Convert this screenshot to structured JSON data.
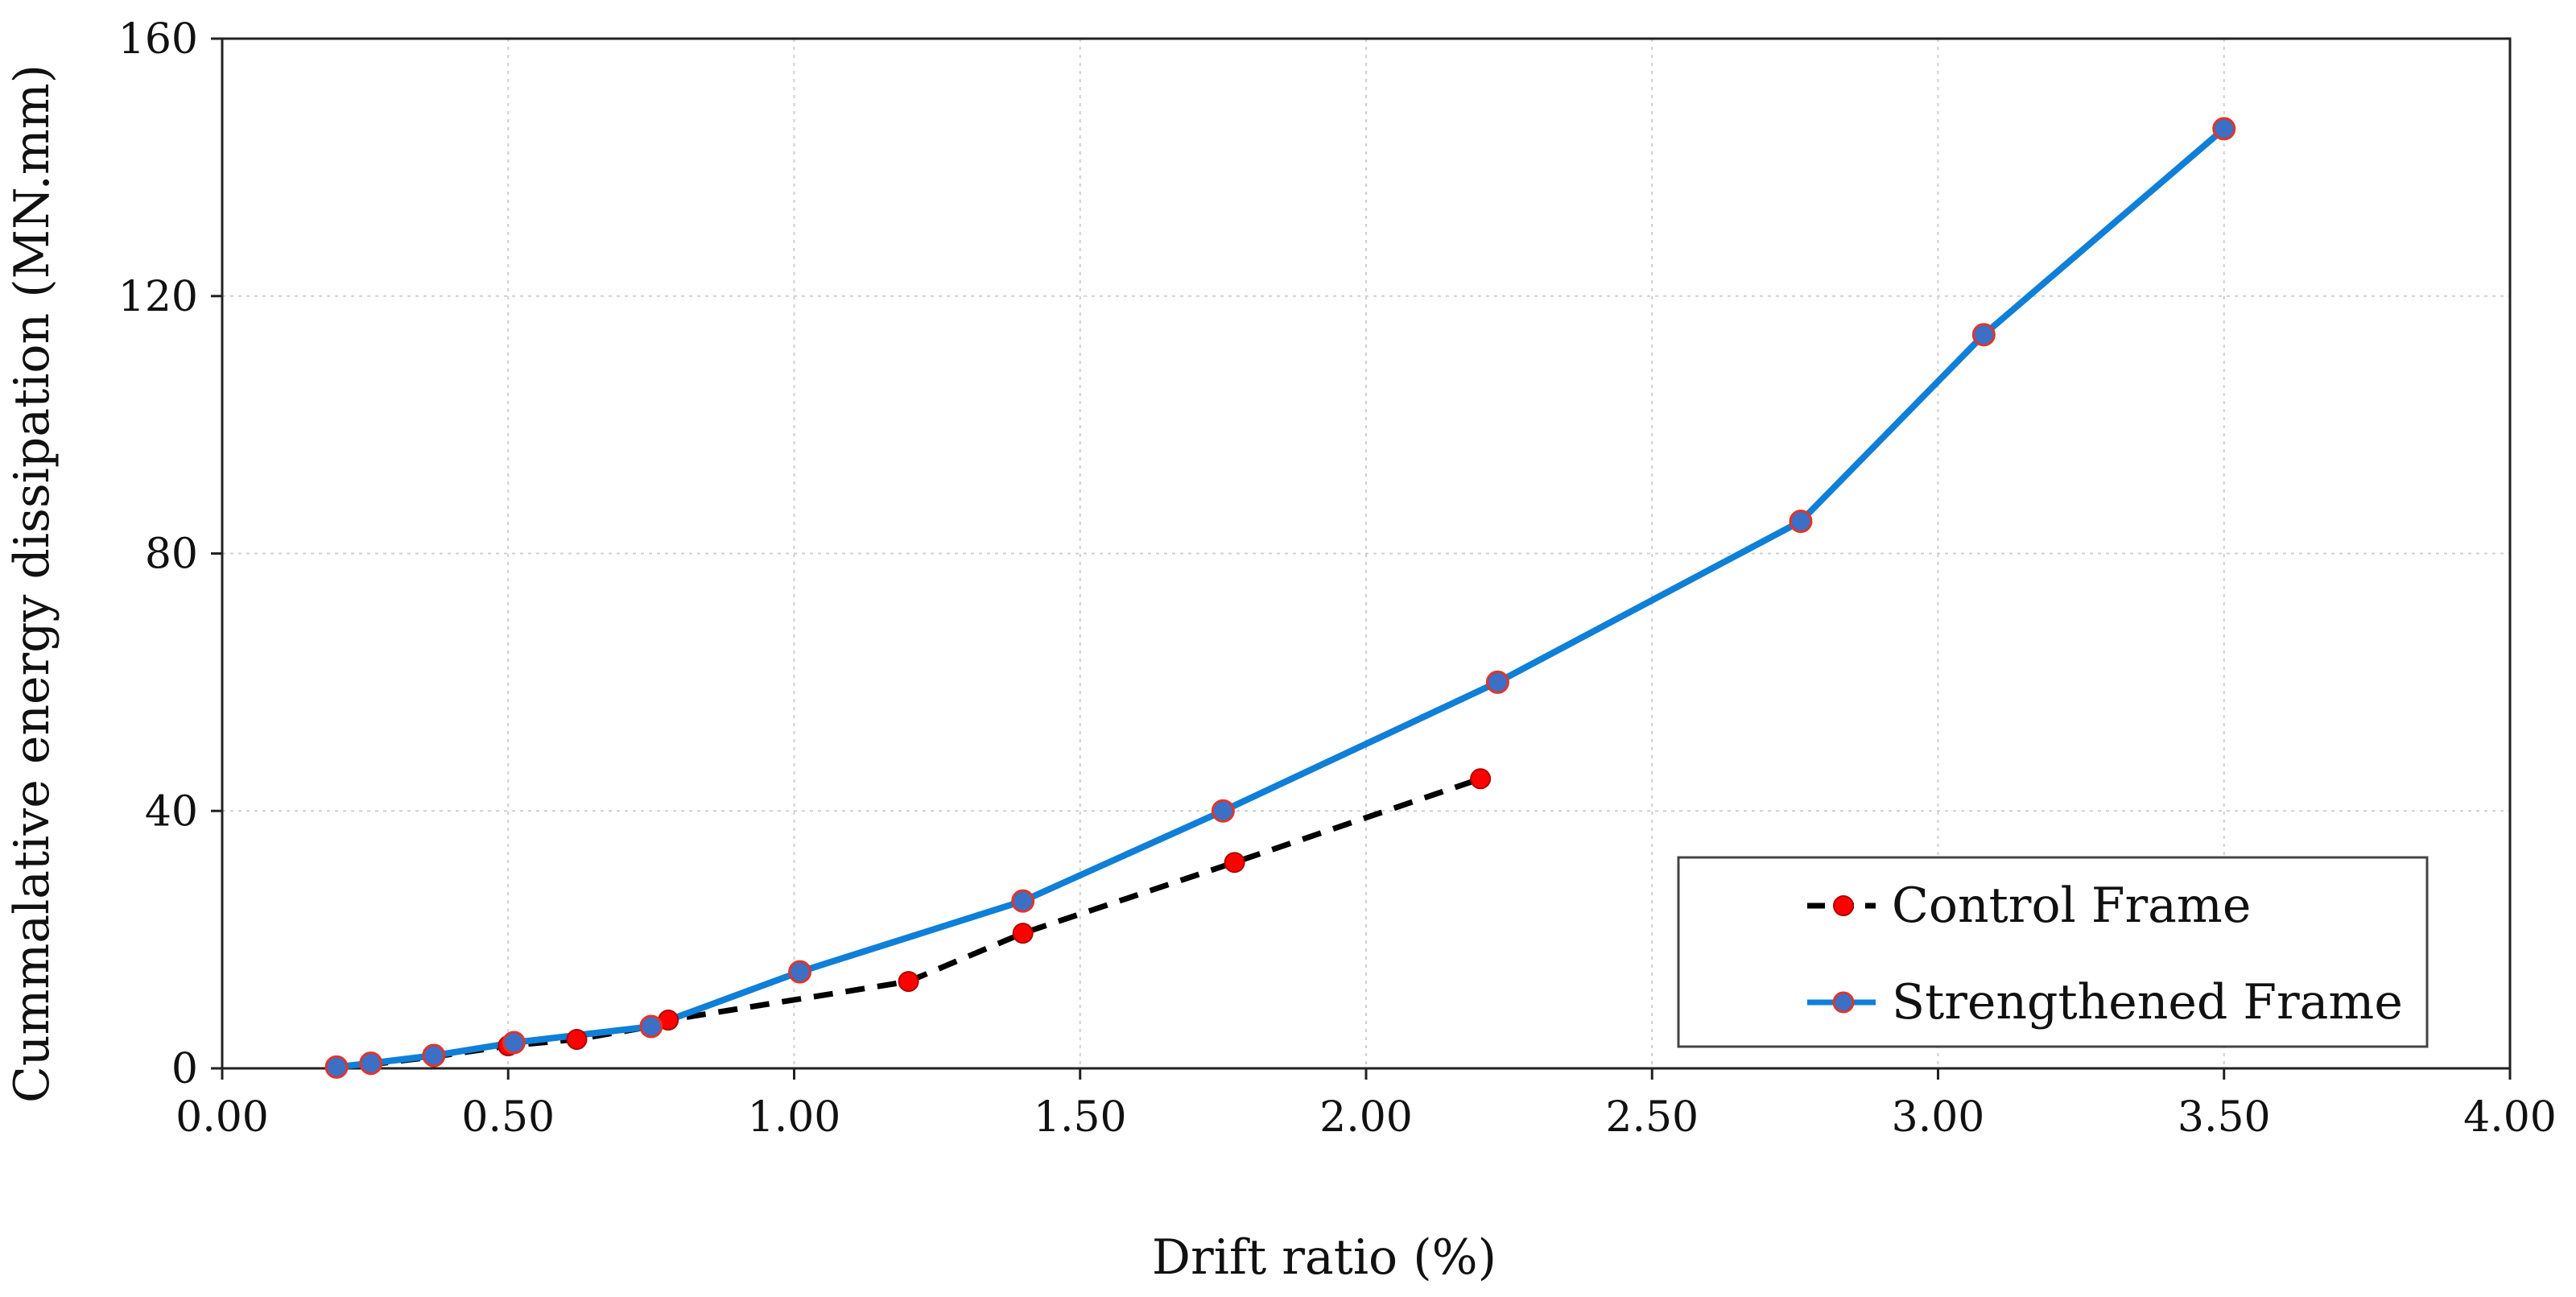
{
  "chart_data": {
    "type": "line",
    "title": "",
    "xlabel": "Drift ratio (%)",
    "ylabel": "Cummalative energy dissipation (MN.mm)",
    "xlim": [
      0,
      4
    ],
    "ylim": [
      0,
      160
    ],
    "x_ticks": [
      "0.00",
      "0.50",
      "1.00",
      "1.50",
      "2.00",
      "2.50",
      "3.00",
      "3.50",
      "4.00"
    ],
    "y_ticks": [
      "0",
      "40",
      "80",
      "120",
      "160"
    ],
    "grid": true,
    "legend_position": "bottom-right",
    "series": [
      {
        "name": "Control Frame",
        "line_color": "#000000",
        "marker_color": "#ff0000",
        "line_style": "dashed",
        "x": [
          0.2,
          0.26,
          0.37,
          0.5,
          0.62,
          0.75,
          0.78,
          1.2,
          1.4,
          1.77,
          2.2
        ],
        "y": [
          0.2,
          0.6,
          1.8,
          3.5,
          4.5,
          6.5,
          7.5,
          13.5,
          21,
          32,
          45
        ]
      },
      {
        "name": "Strengthened Frame",
        "line_color": "#0f7fd7",
        "marker_color": "#3d6fc4",
        "marker_edge": "#e0352b",
        "line_style": "solid",
        "x": [
          0.2,
          0.26,
          0.37,
          0.51,
          0.75,
          1.01,
          1.4,
          1.75,
          2.23,
          2.76,
          3.08,
          3.5
        ],
        "y": [
          0.2,
          0.8,
          2,
          4,
          6.5,
          15,
          26,
          40,
          60,
          85,
          114,
          146
        ]
      }
    ]
  }
}
